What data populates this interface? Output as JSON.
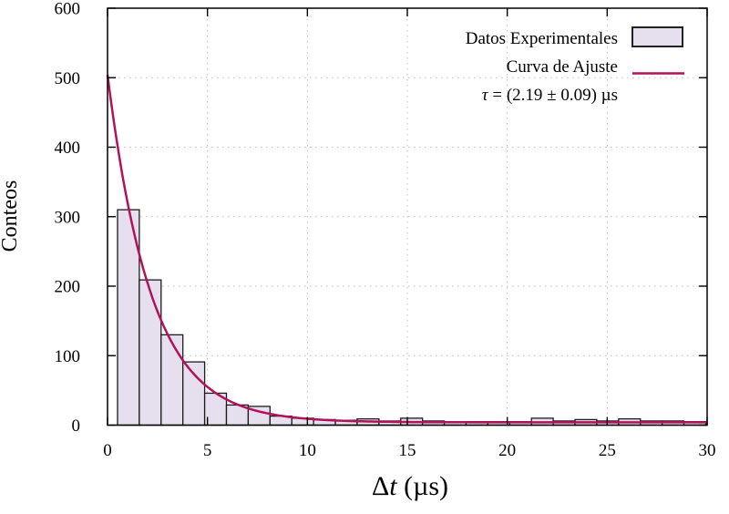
{
  "page": {
    "background": "#ffffff"
  },
  "colors": {
    "bar_fill": "#e6e0ee",
    "bar_border": "#1c1c1c",
    "curve": "#b1125a",
    "grid": "#bdbdbd",
    "axis": "#000000",
    "text": "#000000"
  },
  "labels": {
    "xlabel_delta": "Δ",
    "xlabel_var": "t",
    "xlabel_unit": " (µs)"
  },
  "legend": {
    "items": [
      {
        "label": "Datos Experimentales",
        "swatch": "filled-box"
      },
      {
        "label": "Curva de Ajuste",
        "swatch": "line"
      }
    ],
    "tau_symbol": "τ",
    "tau_rest": " = (2.19 ± 0.09) µs"
  },
  "chart_data": {
    "type": "bar",
    "subtype": "histogram-with-exponential-fit",
    "title": "",
    "xlabel": "Δt (µs)",
    "ylabel": "Conteos",
    "xlim": [
      0,
      30
    ],
    "ylim": [
      0,
      600
    ],
    "x_ticks": [
      0,
      5,
      10,
      15,
      20,
      25,
      30
    ],
    "y_ticks": [
      0,
      100,
      200,
      300,
      400,
      500,
      600
    ],
    "grid": {
      "style": "dotted",
      "on_major_ticks": true
    },
    "legend_position": "top-right-inside",
    "series": [
      {
        "name": "Datos Experimentales",
        "type": "histogram",
        "bin_start": 0.5,
        "bin_width": 1.09,
        "counts": [
          310,
          209,
          130,
          91,
          46,
          29,
          27,
          13,
          10,
          8,
          7,
          9,
          6,
          10,
          6,
          5,
          5,
          5,
          5,
          10,
          6,
          8,
          6,
          9,
          6,
          6,
          5
        ]
      },
      {
        "name": "Curva de Ajuste",
        "type": "line",
        "model": "A·exp(−t/τ) + C",
        "A": 500,
        "tau_us": 2.19,
        "tau_err_us": 0.09,
        "C": 4
      }
    ]
  }
}
